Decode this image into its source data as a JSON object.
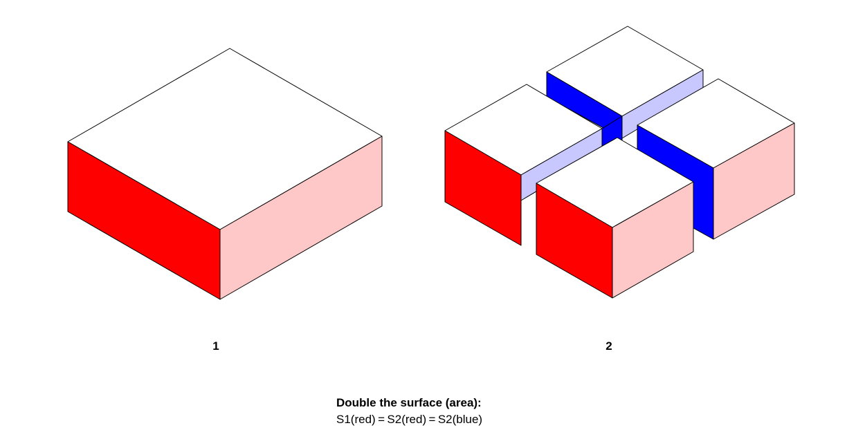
{
  "figures": [
    {
      "label": "1"
    },
    {
      "label": "2"
    }
  ],
  "caption": {
    "title": "Double the surface (area):",
    "equation": "S1(red) = S2(red) = S2(blue)"
  },
  "colors": {
    "top": "#ffffff",
    "red_front": "#ff0000",
    "red_side": "#ffc8c8",
    "blue_inner": "#0000ff",
    "blue_light": "#c8c8ff",
    "outline": "#000000"
  }
}
